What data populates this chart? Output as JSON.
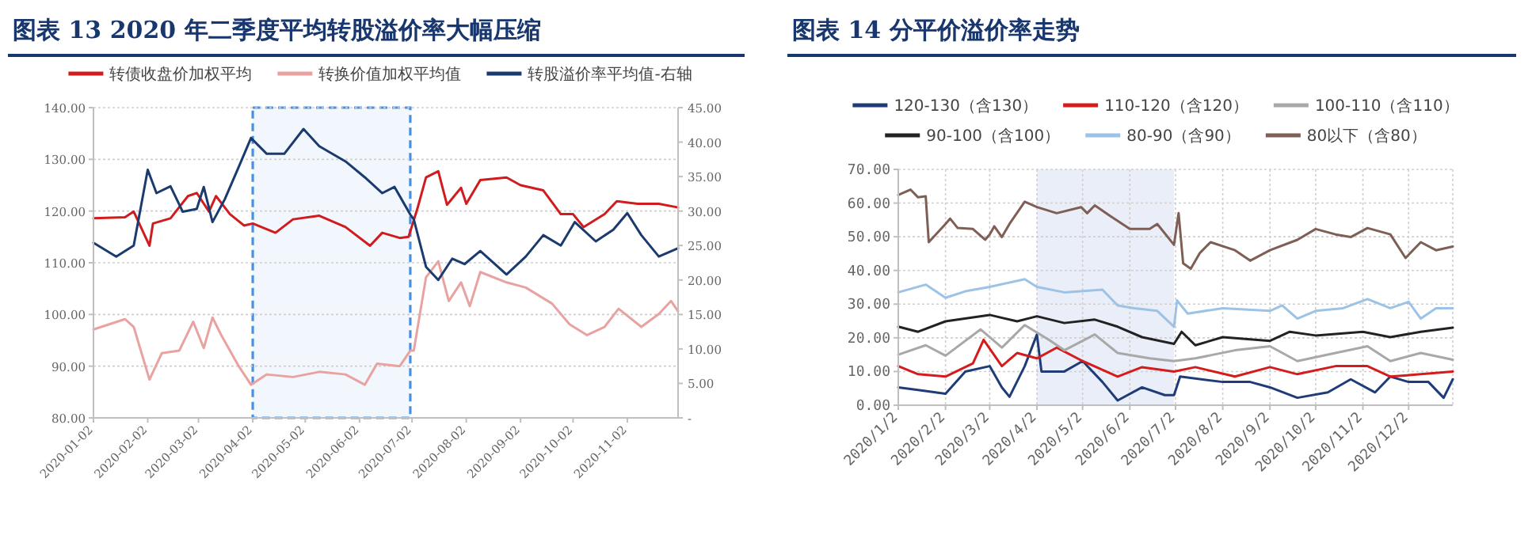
{
  "chart_data": [
    {
      "type": "line",
      "title": "图表 13   2020 年二季度平均转股溢价率大幅压缩",
      "legend": "top",
      "grid": "y",
      "xlim": [
        "2020-01-02",
        "2020-12-01"
      ],
      "xticks": [
        "2020-01-02",
        "2020-02-02",
        "2020-03-02",
        "2020-04-02",
        "2020-05-02",
        "2020-06-02",
        "2020-07-02",
        "2020-08-02",
        "2020-09-02",
        "2020-10-02",
        "2020-11-02"
      ],
      "ylim": [
        80,
        140
      ],
      "yticks": [
        {
          "value": 80,
          "label": "80.00"
        },
        {
          "value": 90,
          "label": "90.00"
        },
        {
          "value": 100,
          "label": "100.00"
        },
        {
          "value": 110,
          "label": "110.00"
        },
        {
          "value": 120,
          "label": "120.00"
        },
        {
          "value": 130,
          "label": "130.00"
        },
        {
          "value": 140,
          "label": "140.00"
        }
      ],
      "y2lim": [
        0,
        45
      ],
      "y2ticks": [
        {
          "value": 0,
          "label": "-"
        },
        {
          "value": 5,
          "label": "5.00"
        },
        {
          "value": 10,
          "label": "10.00"
        },
        {
          "value": 15,
          "label": "15.00"
        },
        {
          "value": 20,
          "label": "20.00"
        },
        {
          "value": 25,
          "label": "25.00"
        },
        {
          "value": 30,
          "label": "30.00"
        },
        {
          "value": 35,
          "label": "35.00"
        },
        {
          "value": 40,
          "label": "40.00"
        },
        {
          "value": 45,
          "label": "45.00"
        }
      ],
      "bands": [
        {
          "axis": "x",
          "from": "2020-04-02",
          "to": "2020-07-01",
          "color": "#4a8fe0"
        }
      ],
      "series": [
        {
          "name": "转债收盘价加权平均",
          "color": "#d01c1f",
          "x": [
            "2020-01-02",
            "2020-01-20",
            "2020-01-25",
            "2020-02-03",
            "2020-02-05",
            "2020-02-15",
            "2020-02-25",
            "2020-03-01",
            "2020-03-08",
            "2020-03-12",
            "2020-03-20",
            "2020-03-28",
            "2020-04-02",
            "2020-04-15",
            "2020-04-25",
            "2020-05-10",
            "2020-05-25",
            "2020-06-08",
            "2020-06-15",
            "2020-06-25",
            "2020-06-30",
            "2020-07-05",
            "2020-07-10",
            "2020-07-17",
            "2020-07-22",
            "2020-07-30",
            "2020-08-02",
            "2020-08-10",
            "2020-08-25",
            "2020-09-02",
            "2020-09-15",
            "2020-09-25",
            "2020-10-02",
            "2020-10-08",
            "2020-10-20",
            "2020-10-27",
            "2020-11-08",
            "2020-11-20",
            "2020-12-01"
          ],
          "values": [
            118.6,
            118.8,
            119.9,
            113.3,
            117.6,
            118.6,
            122.9,
            123.5,
            119.9,
            122.9,
            119.4,
            117.2,
            117.6,
            115.8,
            118.4,
            119.1,
            116.9,
            113.3,
            115.8,
            114.8,
            115.0,
            120.4,
            126.5,
            127.7,
            121.2,
            124.5,
            121.4,
            126.0,
            126.5,
            125.0,
            124.0,
            119.4,
            119.4,
            116.9,
            119.4,
            121.9,
            121.4,
            121.4,
            120.7
          ]
        },
        {
          "name": "转换价值加权平均值",
          "color": "#e8a3a0",
          "x": [
            "2020-01-02",
            "2020-01-20",
            "2020-01-25",
            "2020-02-03",
            "2020-02-10",
            "2020-02-20",
            "2020-02-28",
            "2020-03-05",
            "2020-03-10",
            "2020-03-15",
            "2020-03-25",
            "2020-04-01",
            "2020-04-10",
            "2020-04-25",
            "2020-05-10",
            "2020-05-25",
            "2020-06-05",
            "2020-06-12",
            "2020-06-25",
            "2020-07-01",
            "2020-07-03",
            "2020-07-10",
            "2020-07-17",
            "2020-07-23",
            "2020-07-30",
            "2020-08-04",
            "2020-08-10",
            "2020-08-25",
            "2020-09-05",
            "2020-09-20",
            "2020-09-30",
            "2020-10-10",
            "2020-10-20",
            "2020-10-28",
            "2020-11-10",
            "2020-11-20",
            "2020-11-27",
            "2020-12-01"
          ],
          "values": [
            97.1,
            99.1,
            97.6,
            87.4,
            92.5,
            93.0,
            98.6,
            93.5,
            99.4,
            96.0,
            90.0,
            86.4,
            88.4,
            87.9,
            88.9,
            88.4,
            86.4,
            90.5,
            90.0,
            93.0,
            93.0,
            107.2,
            110.3,
            102.6,
            106.2,
            101.6,
            108.2,
            106.2,
            105.2,
            102.1,
            98.1,
            96.0,
            97.6,
            101.1,
            97.6,
            100.1,
            102.6,
            100.6
          ]
        },
        {
          "name": "转股溢价率平均值-右轴",
          "color": "#1b3a6e",
          "axis": "y2",
          "x": [
            "2020-01-02",
            "2020-01-15",
            "2020-01-25",
            "2020-02-02",
            "2020-02-07",
            "2020-02-15",
            "2020-02-22",
            "2020-03-01",
            "2020-03-05",
            "2020-03-10",
            "2020-03-17",
            "2020-03-25",
            "2020-04-01",
            "2020-04-10",
            "2020-04-20",
            "2020-05-01",
            "2020-05-10",
            "2020-05-25",
            "2020-06-05",
            "2020-06-15",
            "2020-06-22",
            "2020-07-01",
            "2020-07-03",
            "2020-07-10",
            "2020-07-17",
            "2020-07-25",
            "2020-08-01",
            "2020-08-10",
            "2020-08-25",
            "2020-09-05",
            "2020-09-15",
            "2020-09-25",
            "2020-10-03",
            "2020-10-15",
            "2020-10-25",
            "2020-11-02",
            "2020-11-10",
            "2020-11-20",
            "2020-12-01"
          ],
          "values": [
            25.4,
            23.4,
            25.0,
            36.0,
            32.6,
            33.6,
            29.9,
            30.3,
            33.5,
            28.4,
            31.7,
            36.4,
            40.6,
            38.3,
            38.3,
            41.9,
            39.4,
            37.2,
            34.9,
            32.6,
            33.5,
            29.5,
            28.8,
            21.9,
            20.0,
            23.1,
            22.3,
            24.2,
            20.8,
            23.4,
            26.5,
            25.0,
            28.4,
            25.6,
            27.3,
            29.7,
            26.5,
            23.4,
            24.6
          ]
        }
      ]
    },
    {
      "type": "line",
      "title": "图表 14   分平价溢价率走势",
      "legend": "top",
      "grid": true,
      "xlim": [
        "2020-01-02",
        "2020-12-31"
      ],
      "xticks": [
        {
          "value": "2020-01-02",
          "label": "2020/1/2"
        },
        {
          "value": "2020-02-02",
          "label": "2020/2/2"
        },
        {
          "value": "2020-03-02",
          "label": "2020/3/2"
        },
        {
          "value": "2020-04-02",
          "label": "2020/4/2"
        },
        {
          "value": "2020-05-02",
          "label": "2020/5/2"
        },
        {
          "value": "2020-06-02",
          "label": "2020/6/2"
        },
        {
          "value": "2020-07-02",
          "label": "2020/7/2"
        },
        {
          "value": "2020-08-02",
          "label": "2020/8/2"
        },
        {
          "value": "2020-09-02",
          "label": "2020/9/2"
        },
        {
          "value": "2020-10-02",
          "label": "2020/10/2"
        },
        {
          "value": "2020-11-02",
          "label": "2020/11/2"
        },
        {
          "value": "2020-12-02",
          "label": "2020/12/2"
        }
      ],
      "ylim": [
        0,
        70
      ],
      "yticks": [
        {
          "value": 0,
          "label": "0.00"
        },
        {
          "value": 10,
          "label": "10.00"
        },
        {
          "value": 20,
          "label": "20.00"
        },
        {
          "value": 30,
          "label": "30.00"
        },
        {
          "value": 40,
          "label": "40.00"
        },
        {
          "value": 50,
          "label": "50.00"
        },
        {
          "value": 60,
          "label": "60.00"
        },
        {
          "value": 70,
          "label": "70.00"
        }
      ],
      "bands": [
        {
          "axis": "x",
          "from": "2020-04-02",
          "to": "2020-07-01",
          "color": "#e9eef8"
        }
      ],
      "series": [
        {
          "name": "120-130（含130）",
          "color": "#1f3c78",
          "x": [
            "2020-01-02",
            "2020-01-15",
            "2020-02-02",
            "2020-02-15",
            "2020-03-02",
            "2020-03-10",
            "2020-03-15",
            "2020-03-25",
            "2020-04-02",
            "2020-04-05",
            "2020-04-20",
            "2020-05-02",
            "2020-05-15",
            "2020-05-25",
            "2020-06-10",
            "2020-06-25",
            "2020-07-01",
            "2020-07-05",
            "2020-08-02",
            "2020-08-20",
            "2020-09-02",
            "2020-09-20",
            "2020-10-10",
            "2020-10-25",
            "2020-11-10",
            "2020-11-20",
            "2020-12-02",
            "2020-12-15",
            "2020-12-25",
            "2020-12-31"
          ],
          "values": [
            5.3,
            4.5,
            3.4,
            10.0,
            11.6,
            5.3,
            2.5,
            11.6,
            21.0,
            10.0,
            10.0,
            13.1,
            6.9,
            1.4,
            5.3,
            3.0,
            3.0,
            8.5,
            6.9,
            6.9,
            5.3,
            2.2,
            3.8,
            7.7,
            3.8,
            8.5,
            6.9,
            6.9,
            2.2,
            7.7
          ]
        },
        {
          "name": "110-120（含120）",
          "color": "#d41c1c",
          "x": [
            "2020-01-02",
            "2020-01-15",
            "2020-02-02",
            "2020-02-20",
            "2020-02-27",
            "2020-03-10",
            "2020-03-20",
            "2020-04-02",
            "2020-04-15",
            "2020-05-02",
            "2020-05-25",
            "2020-06-10",
            "2020-07-01",
            "2020-07-15",
            "2020-08-10",
            "2020-09-02",
            "2020-09-20",
            "2020-10-15",
            "2020-11-05",
            "2020-11-20",
            "2020-12-10",
            "2020-12-31"
          ],
          "values": [
            11.6,
            9.2,
            8.5,
            12.4,
            19.4,
            11.6,
            15.5,
            13.9,
            17.1,
            13.1,
            8.5,
            11.3,
            10.0,
            11.3,
            8.5,
            11.3,
            9.2,
            11.6,
            11.6,
            8.5,
            9.2,
            10.0
          ]
        },
        {
          "name": "100-110（含110）",
          "color": "#a8a8a8",
          "x": [
            "2020-01-02",
            "2020-01-20",
            "2020-02-02",
            "2020-02-25",
            "2020-03-10",
            "2020-03-25",
            "2020-04-10",
            "2020-04-20",
            "2020-05-10",
            "2020-05-25",
            "2020-06-15",
            "2020-07-01",
            "2020-07-15",
            "2020-08-10",
            "2020-09-02",
            "2020-09-20",
            "2020-10-15",
            "2020-11-05",
            "2020-11-20",
            "2020-12-10",
            "2020-12-31"
          ],
          "values": [
            15.0,
            17.8,
            14.7,
            22.5,
            17.1,
            23.8,
            19.4,
            16.3,
            21.0,
            15.5,
            13.9,
            13.1,
            13.9,
            16.3,
            17.5,
            13.1,
            15.5,
            17.5,
            13.1,
            15.5,
            13.5
          ]
        },
        {
          "name": "90-100（含100）",
          "color": "#222222",
          "x": [
            "2020-01-02",
            "2020-01-15",
            "2020-02-02",
            "2020-03-02",
            "2020-03-20",
            "2020-04-02",
            "2020-04-20",
            "2020-05-10",
            "2020-05-25",
            "2020-06-10",
            "2020-07-01",
            "2020-07-06",
            "2020-07-15",
            "2020-08-02",
            "2020-09-02",
            "2020-09-15",
            "2020-10-02",
            "2020-11-02",
            "2020-11-20",
            "2020-12-10",
            "2020-12-31"
          ],
          "values": [
            23.3,
            21.8,
            24.9,
            26.8,
            24.9,
            26.4,
            24.4,
            25.4,
            23.3,
            20.2,
            18.2,
            21.8,
            17.8,
            20.2,
            19.1,
            21.8,
            20.7,
            21.8,
            20.2,
            21.8,
            23.0
          ]
        },
        {
          "name": "80-90（含90）",
          "color": "#9cc2e5",
          "x": [
            "2020-01-02",
            "2020-01-20",
            "2020-02-02",
            "2020-02-15",
            "2020-03-02",
            "2020-03-25",
            "2020-04-02",
            "2020-04-20",
            "2020-05-15",
            "2020-05-25",
            "2020-06-05",
            "2020-06-20",
            "2020-07-01",
            "2020-07-03",
            "2020-07-10",
            "2020-08-02",
            "2020-09-02",
            "2020-09-10",
            "2020-09-20",
            "2020-10-02",
            "2020-10-20",
            "2020-11-05",
            "2020-11-20",
            "2020-12-02",
            "2020-12-10",
            "2020-12-20",
            "2020-12-31"
          ],
          "values": [
            33.5,
            35.8,
            31.9,
            33.8,
            35.1,
            37.4,
            35.1,
            33.5,
            34.3,
            29.6,
            28.8,
            28.0,
            23.3,
            31.1,
            27.2,
            28.8,
            28.0,
            29.6,
            25.7,
            28.0,
            28.8,
            31.5,
            28.8,
            30.7,
            25.7,
            28.8,
            28.8
          ]
        },
        {
          "name": "80以下（含80）",
          "color": "#7f5f55",
          "x": [
            "2020-01-02",
            "2020-01-10",
            "2020-01-15",
            "2020-01-20",
            "2020-01-22",
            "2020-02-02",
            "2020-02-05",
            "2020-02-10",
            "2020-02-20",
            "2020-02-28",
            "2020-03-02",
            "2020-03-05",
            "2020-03-10",
            "2020-03-15",
            "2020-03-25",
            "2020-04-02",
            "2020-04-15",
            "2020-05-01",
            "2020-05-05",
            "2020-05-10",
            "2020-05-20",
            "2020-06-02",
            "2020-06-15",
            "2020-06-20",
            "2020-07-01",
            "2020-07-04",
            "2020-07-07",
            "2020-07-12",
            "2020-07-18",
            "2020-07-25",
            "2020-08-10",
            "2020-08-20",
            "2020-09-02",
            "2020-09-20",
            "2020-10-02",
            "2020-10-15",
            "2020-10-25",
            "2020-11-05",
            "2020-11-20",
            "2020-11-30",
            "2020-12-10",
            "2020-12-20",
            "2020-12-31"
          ],
          "values": [
            62.4,
            64.0,
            61.7,
            62.0,
            48.4,
            53.8,
            55.4,
            52.6,
            52.3,
            49.1,
            50.7,
            53.1,
            49.9,
            53.8,
            60.4,
            58.8,
            57.0,
            58.8,
            57.0,
            59.3,
            56.2,
            52.3,
            52.3,
            53.8,
            47.6,
            57.0,
            42.1,
            40.5,
            45.2,
            48.4,
            46.0,
            42.9,
            46.0,
            49.1,
            52.3,
            50.7,
            49.9,
            52.6,
            50.7,
            43.7,
            48.4,
            46.0,
            47.1
          ]
        }
      ]
    }
  ]
}
